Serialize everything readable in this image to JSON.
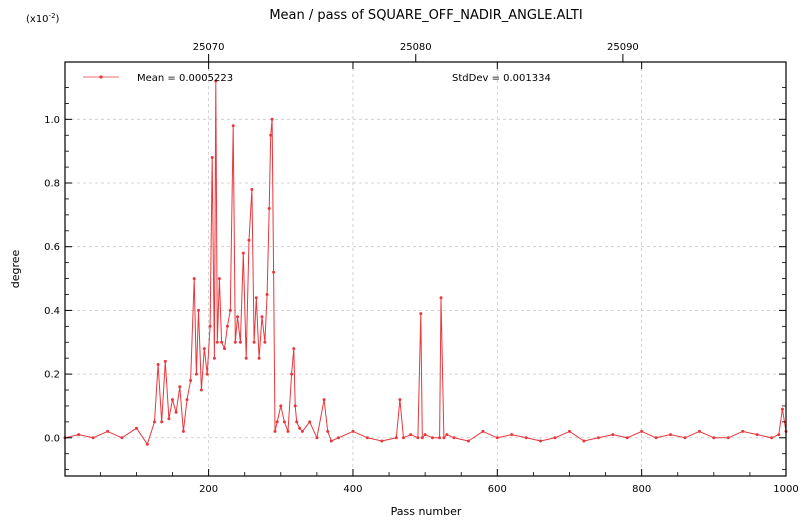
{
  "chart_data": {
    "type": "line",
    "title": "Mean / pass of SQUARE_OFF_NADIR_ANGLE.ALTI",
    "xlabel": "Pass number",
    "ylabel": "degree",
    "y_scale_note_base": "(x10",
    "y_scale_note_exp": "-2",
    "y_scale_note_end": ")",
    "xlim": [
      1,
      1000
    ],
    "ylim": [
      -0.12,
      1.18
    ],
    "top_axis_ticks": [
      {
        "label": "25070",
        "x": 200
      },
      {
        "label": "25080",
        "x": 487
      },
      {
        "label": "25090",
        "x": 774
      }
    ],
    "x_ticks": [
      200,
      400,
      600,
      800,
      1000
    ],
    "x_tick_labels": [
      "200",
      "400",
      "600",
      "800",
      "1000"
    ],
    "y_ticks": [
      0.0,
      0.2,
      0.4,
      0.6,
      0.8,
      1.0
    ],
    "y_tick_labels": [
      "0.0",
      "0.2",
      "0.4",
      "0.6",
      "0.8",
      "1.0"
    ],
    "grid": true,
    "legend_position": "top-left",
    "series": [
      {
        "name": "Mean = 0.0005223",
        "color": "#e8383d",
        "x": [
          1,
          20,
          40,
          60,
          80,
          100,
          115,
          125,
          130,
          135,
          140,
          145,
          150,
          155,
          160,
          165,
          170,
          175,
          180,
          183,
          186,
          190,
          194,
          198,
          202,
          205,
          208,
          210,
          212,
          215,
          218,
          222,
          226,
          230,
          234,
          237,
          240,
          244,
          248,
          252,
          256,
          260,
          263,
          266,
          270,
          274,
          278,
          281,
          284,
          286,
          288,
          290,
          292,
          295,
          300,
          305,
          310,
          315,
          318,
          320,
          322,
          326,
          330,
          340,
          350,
          360,
          365,
          370,
          380,
          400,
          420,
          440,
          460,
          465,
          470,
          480,
          490,
          494,
          496,
          500,
          510,
          520,
          522,
          526,
          530,
          540,
          560,
          580,
          600,
          620,
          640,
          660,
          680,
          700,
          720,
          740,
          760,
          780,
          800,
          820,
          840,
          860,
          880,
          900,
          920,
          940,
          960,
          980,
          990,
          995,
          1000
        ],
        "values": [
          0.0,
          0.01,
          0.0,
          0.02,
          0.0,
          0.03,
          -0.02,
          0.05,
          0.23,
          0.05,
          0.24,
          0.06,
          0.12,
          0.08,
          0.16,
          0.02,
          0.12,
          0.18,
          0.5,
          0.2,
          0.4,
          0.15,
          0.28,
          0.2,
          0.35,
          0.88,
          0.25,
          1.12,
          0.3,
          0.5,
          0.3,
          0.28,
          0.35,
          0.4,
          0.98,
          0.3,
          0.38,
          0.3,
          0.58,
          0.25,
          0.62,
          0.78,
          0.3,
          0.44,
          0.25,
          0.38,
          0.3,
          0.45,
          0.72,
          0.95,
          1.0,
          0.52,
          0.02,
          0.05,
          0.1,
          0.05,
          0.02,
          0.2,
          0.28,
          0.1,
          0.05,
          0.03,
          0.02,
          0.05,
          0.0,
          0.12,
          0.02,
          -0.01,
          0.0,
          0.02,
          0.0,
          -0.01,
          0.0,
          0.12,
          0.0,
          0.01,
          0.0,
          0.39,
          0.0,
          0.01,
          0.0,
          0.0,
          0.44,
          0.0,
          0.01,
          0.0,
          -0.01,
          0.02,
          0.0,
          0.01,
          0.0,
          -0.01,
          0.0,
          0.02,
          -0.01,
          0.0,
          0.01,
          0.0,
          0.02,
          0.0,
          0.01,
          0.0,
          0.02,
          0.0,
          0.0,
          0.02,
          0.01,
          0.0,
          0.01,
          0.09,
          0.02
        ]
      }
    ],
    "annotations": [
      "StdDev = 0.001334"
    ]
  }
}
